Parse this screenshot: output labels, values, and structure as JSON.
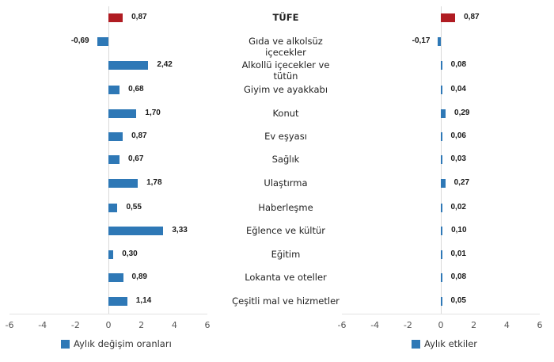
{
  "chart_data": [
    {
      "type": "bar",
      "orientation": "horizontal",
      "title": "",
      "legend": "Aylık değişim oranları",
      "xlim": [
        -6,
        6
      ],
      "xticks": [
        -6,
        -4,
        -2,
        0,
        2,
        4,
        6
      ],
      "categories": [
        "TÜFE",
        "Gıda ve alkolsüz içecekler",
        "Alkollü içecekler ve tütün",
        "Giyim ve ayakkabı",
        "Konut",
        "Ev eşyası",
        "Sağlık",
        "Ulaştırma",
        "Haberleşme",
        "Eğlence ve kültür",
        "Eğitim",
        "Lokanta ve oteller",
        "Çeşitli mal ve hizmetler"
      ],
      "values": [
        0.87,
        -0.69,
        2.42,
        0.68,
        1.7,
        0.87,
        0.67,
        1.78,
        0.55,
        3.33,
        0.3,
        0.89,
        1.14
      ],
      "labels": [
        "0,87",
        "-0,69",
        "2,42",
        "0,68",
        "1,70",
        "0,87",
        "0,67",
        "1,78",
        "0,55",
        "3,33",
        "0,30",
        "0,89",
        "1,14"
      ],
      "colors": {
        "highlight": "#b01c22",
        "series": "#2e78b6"
      }
    },
    {
      "type": "bar",
      "orientation": "horizontal",
      "title": "",
      "legend": "Aylık etkiler",
      "xlim": [
        -6,
        6
      ],
      "xticks": [
        -6,
        -4,
        -2,
        0,
        2,
        4,
        6
      ],
      "categories": [
        "TÜFE",
        "Gıda ve alkolsüz içecekler",
        "Alkollü içecekler ve tütün",
        "Giyim ve ayakkabı",
        "Konut",
        "Ev eşyası",
        "Sağlık",
        "Ulaştırma",
        "Haberleşme",
        "Eğlence ve kültür",
        "Eğitim",
        "Lokanta ve oteller",
        "Çeşitli mal ve hizmetler"
      ],
      "values": [
        0.87,
        -0.17,
        0.08,
        0.04,
        0.29,
        0.06,
        0.03,
        0.27,
        0.02,
        0.1,
        0.01,
        0.08,
        0.05
      ],
      "labels": [
        "0,87",
        "-0,17",
        "0,08",
        "0,04",
        "0,29",
        "0,06",
        "0,03",
        "0,27",
        "0,02",
        "0,10",
        "0,01",
        "0,08",
        "0,05"
      ],
      "colors": {
        "highlight": "#b01c22",
        "series": "#2e78b6"
      }
    }
  ],
  "tick_labels": [
    "-6",
    "-4",
    "-2",
    "0",
    "2",
    "4",
    "6"
  ]
}
